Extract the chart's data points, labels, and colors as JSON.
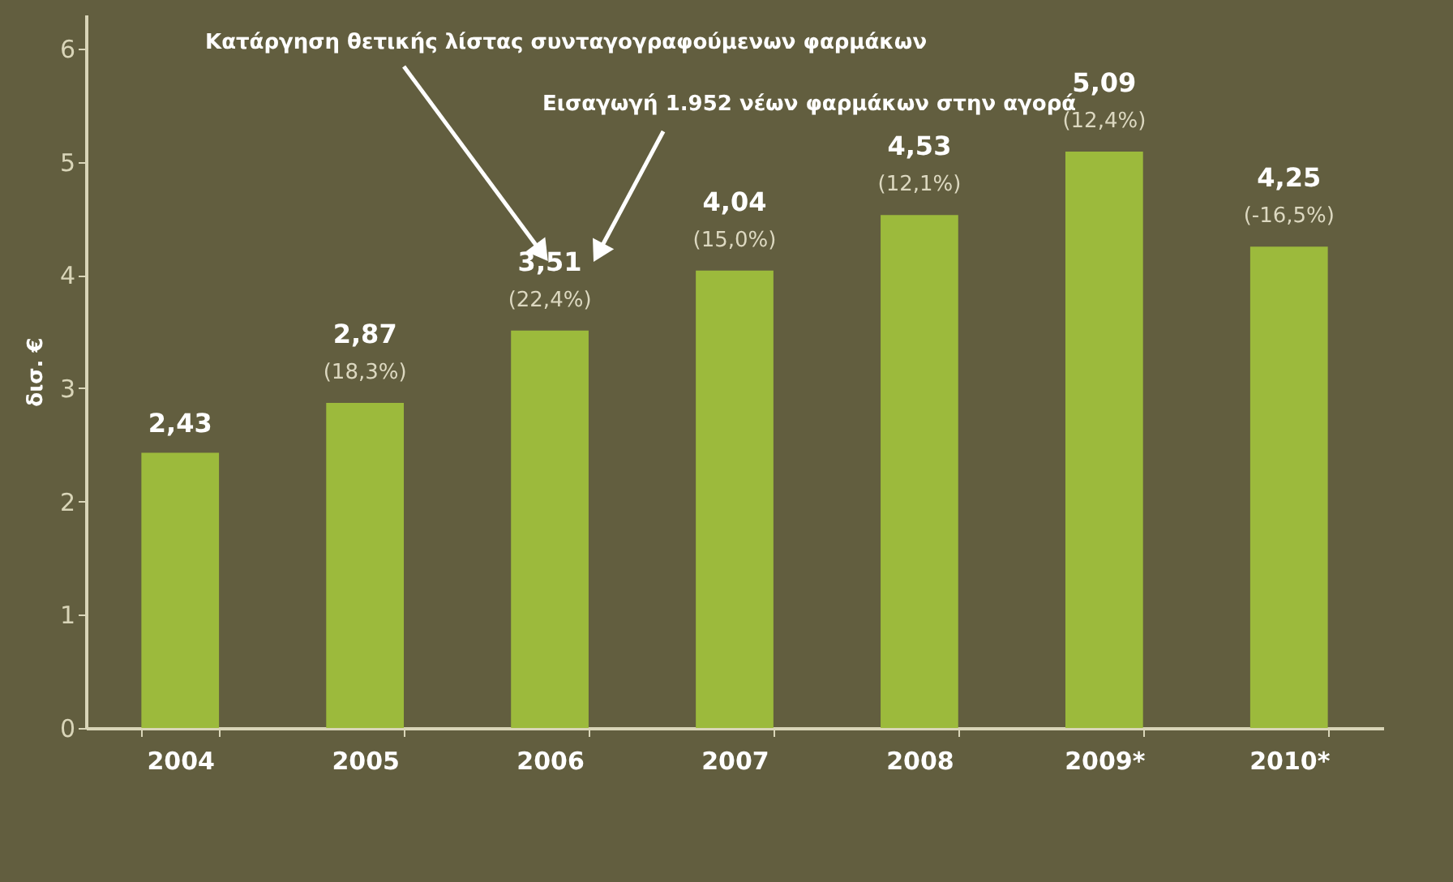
{
  "chart_data": {
    "type": "bar",
    "ylabel": "δισ. €",
    "categories": [
      "2004",
      "2005",
      "2006",
      "2007",
      "2008",
      "2009*",
      "2010*"
    ],
    "values": [
      2.43,
      2.87,
      3.51,
      4.04,
      4.53,
      5.09,
      4.25
    ],
    "color": "#9cba3c",
    "value_labels": [
      "2,43",
      "2,87",
      "3,51",
      "4,04",
      "4,53",
      "5,09",
      "4,25"
    ],
    "ylim": [
      0,
      6.3
    ],
    "yticks": [
      0,
      1,
      2,
      3,
      4,
      5,
      6
    ],
    "grid": false,
    "annotations": [
      "Κατάργηση θετικής λίστας συνταγογραφούμενων φαρμάκων",
      "Εισαγωγή 1.952 νέων φαρμάκων στην αγορά",
      {
        "text": "(18,3%)",
        "x": "2005",
        "y": 2.87
      },
      {
        "text": "(22,4%)",
        "x": "2006",
        "y": 3.51
      },
      {
        "text": "(15,0%)",
        "x": "2007",
        "y": 4.04
      },
      {
        "text": "(12,1%)",
        "x": "2008",
        "y": 4.53
      },
      {
        "text": "(12,4%)",
        "x": "2009*",
        "y": 5.09
      },
      {
        "text": "(-16,5%)",
        "x": "2010*",
        "y": 4.25
      }
    ]
  }
}
